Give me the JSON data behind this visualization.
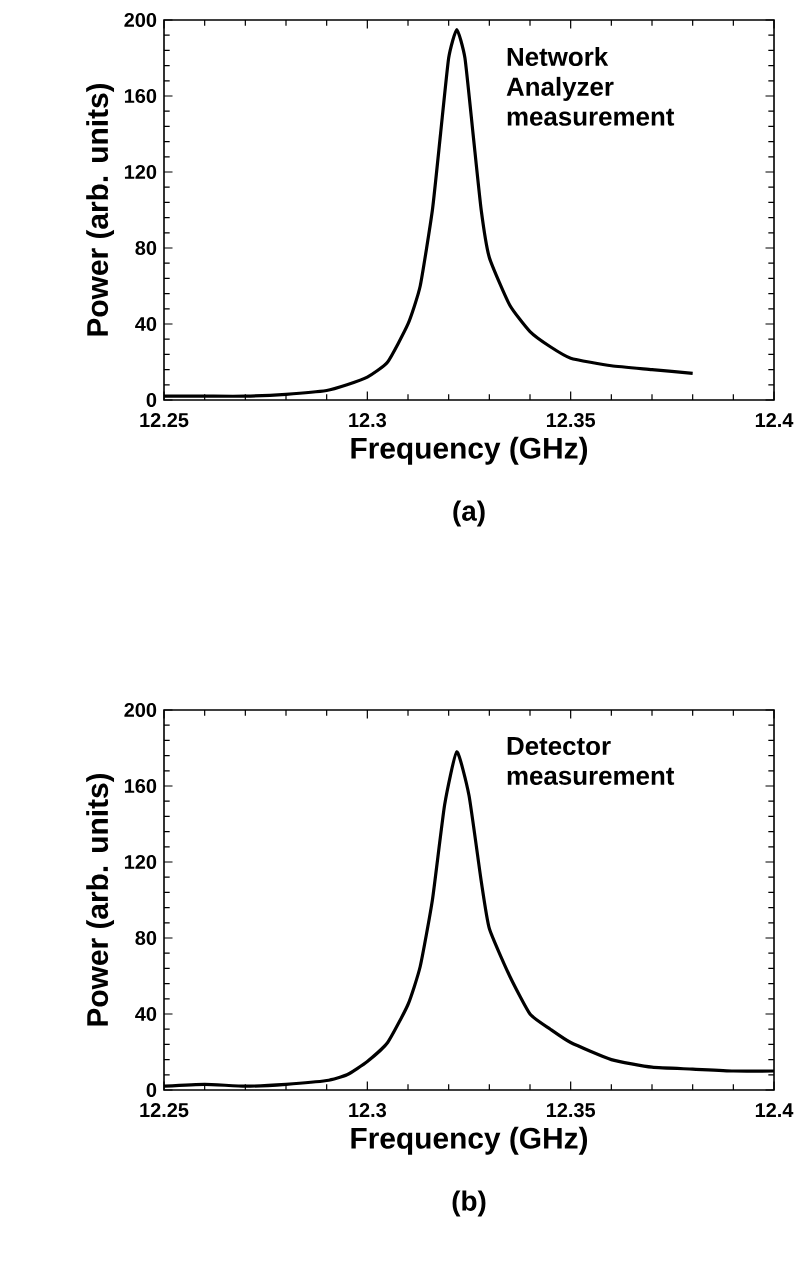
{
  "chart_data": [
    {
      "type": "line",
      "xlabel": "Frequency (GHz)",
      "ylabel": "Power (arb. units)",
      "annotations": [
        "Network Analyzer measurement",
        "(a)"
      ],
      "xlim": [
        12.25,
        12.4
      ],
      "ylim": [
        0,
        200
      ],
      "xticks": [
        12.25,
        12.3,
        12.35,
        12.4
      ],
      "yticks": [
        0,
        40,
        80,
        120,
        160,
        200
      ],
      "marker": "none",
      "line_style": "solid",
      "series": [
        {
          "color": "#000000",
          "x": [
            12.25,
            12.26,
            12.27,
            12.28,
            12.29,
            12.295,
            12.3,
            12.305,
            12.31,
            12.313,
            12.316,
            12.318,
            12.32,
            12.322,
            12.324,
            12.326,
            12.328,
            12.33,
            12.335,
            12.34,
            12.345,
            12.35,
            12.36,
            12.37,
            12.38
          ],
          "values": [
            2,
            2,
            2,
            3,
            5,
            8,
            12,
            20,
            40,
            60,
            100,
            140,
            180,
            195,
            180,
            140,
            100,
            75,
            50,
            36,
            28,
            22,
            18,
            16,
            14
          ]
        }
      ]
    },
    {
      "type": "line",
      "xlabel": "Frequency (GHz)",
      "ylabel": "Power (arb. units)",
      "annotations": [
        "Detector measurement",
        "(b)"
      ],
      "xlim": [
        12.25,
        12.4
      ],
      "ylim": [
        0,
        200
      ],
      "xticks": [
        12.25,
        12.3,
        12.35,
        12.4
      ],
      "yticks": [
        0,
        40,
        80,
        120,
        160,
        200
      ],
      "marker": "none",
      "line_style": "solid",
      "series": [
        {
          "color": "#000000",
          "x": [
            12.25,
            12.26,
            12.27,
            12.28,
            12.29,
            12.295,
            12.3,
            12.305,
            12.31,
            12.313,
            12.316,
            12.319,
            12.322,
            12.325,
            12.328,
            12.33,
            12.335,
            12.34,
            12.345,
            12.35,
            12.36,
            12.37,
            12.38,
            12.39,
            12.4
          ],
          "values": [
            2,
            3,
            2,
            3,
            5,
            8,
            15,
            25,
            45,
            65,
            100,
            150,
            178,
            155,
            110,
            85,
            60,
            40,
            32,
            25,
            16,
            12,
            11,
            10,
            10
          ]
        }
      ]
    }
  ]
}
